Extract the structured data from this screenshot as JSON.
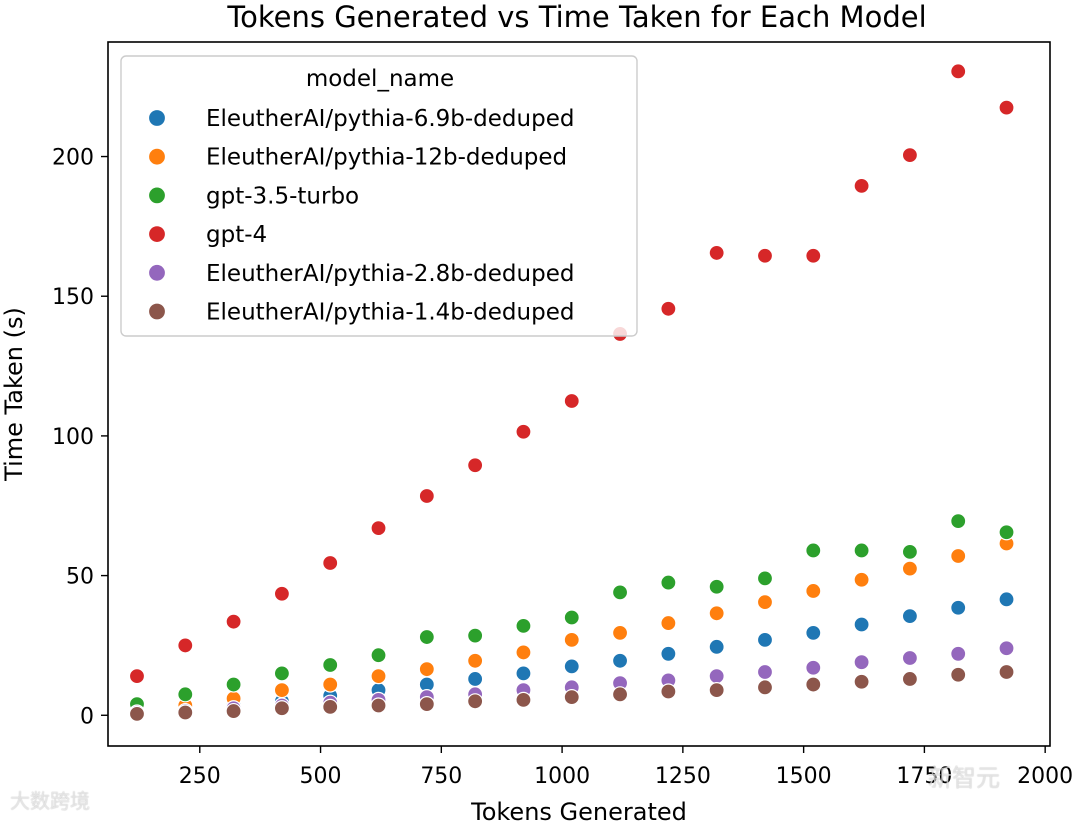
{
  "chart_data": {
    "type": "scatter",
    "title": "Tokens Generated vs Time Taken for Each Model",
    "xlabel": "Tokens Generated",
    "ylabel": "Time Taken (s)",
    "xlim": [
      60,
      2010
    ],
    "ylim": [
      -11,
      241
    ],
    "xticks": [
      250,
      500,
      750,
      1000,
      1250,
      1500,
      1750,
      2000
    ],
    "xtick_labels": [
      "250",
      "500",
      "750",
      "1000",
      "1250",
      "1500",
      "1750",
      "2000"
    ],
    "yticks": [
      0,
      50,
      100,
      150,
      200
    ],
    "ytick_labels": [
      "0",
      "50",
      "100",
      "150",
      "200"
    ],
    "grid": false,
    "legend": {
      "title": "model_name",
      "placement": "top-left"
    },
    "x": [
      120,
      220,
      320,
      420,
      520,
      620,
      720,
      820,
      920,
      1020,
      1120,
      1220,
      1320,
      1420,
      1520,
      1620,
      1720,
      1820,
      1920
    ],
    "series": [
      {
        "name": "EleutherAI/pythia-6.9b-deduped",
        "color": "#1f77b4",
        "values": [
          1,
          2.5,
          3.5,
          5,
          7,
          9,
          11,
          13,
          15,
          17.5,
          19.5,
          22,
          24.5,
          27,
          29.5,
          32.5,
          35.5,
          38.5,
          41.5
        ]
      },
      {
        "name": "EleutherAI/pythia-12b-deduped",
        "color": "#ff7f0e",
        "values": [
          1.5,
          3.5,
          6,
          9,
          11,
          14,
          16.5,
          19.5,
          22.5,
          27,
          29.5,
          33,
          36.5,
          40.5,
          44.5,
          48.5,
          52.5,
          57,
          61.5
        ]
      },
      {
        "name": "gpt-3.5-turbo",
        "color": "#2ca02c",
        "values": [
          4,
          7.5,
          11,
          15,
          18,
          21.5,
          28,
          28.5,
          32,
          35,
          44,
          47.5,
          46,
          49,
          59,
          59,
          58.5,
          69.5,
          65.5
        ]
      },
      {
        "name": "gpt-4",
        "color": "#d62728",
        "values": [
          14,
          25,
          33.5,
          43.5,
          54.5,
          67,
          78.5,
          89.5,
          101.5,
          112.5,
          136.5,
          145.5,
          165.5,
          164.5,
          164.5,
          189.5,
          200.5,
          230.5,
          217.5
        ]
      },
      {
        "name": "EleutherAI/pythia-2.8b-deduped",
        "color": "#9467bd",
        "values": [
          1,
          1.5,
          2.5,
          3.5,
          4.5,
          5.5,
          6.5,
          7.5,
          9,
          10,
          11.5,
          12.5,
          14,
          15.5,
          17,
          19,
          20.5,
          22,
          24
        ]
      },
      {
        "name": "EleutherAI/pythia-1.4b-deduped",
        "color": "#8c564b",
        "values": [
          0.5,
          1,
          1.5,
          2.5,
          3,
          3.5,
          4,
          5,
          5.5,
          6.5,
          7.5,
          8.5,
          9,
          10,
          11,
          12,
          13,
          14.5,
          15.5
        ]
      }
    ]
  },
  "watermarks": {
    "left": "大数跨境",
    "right": "新智元"
  }
}
